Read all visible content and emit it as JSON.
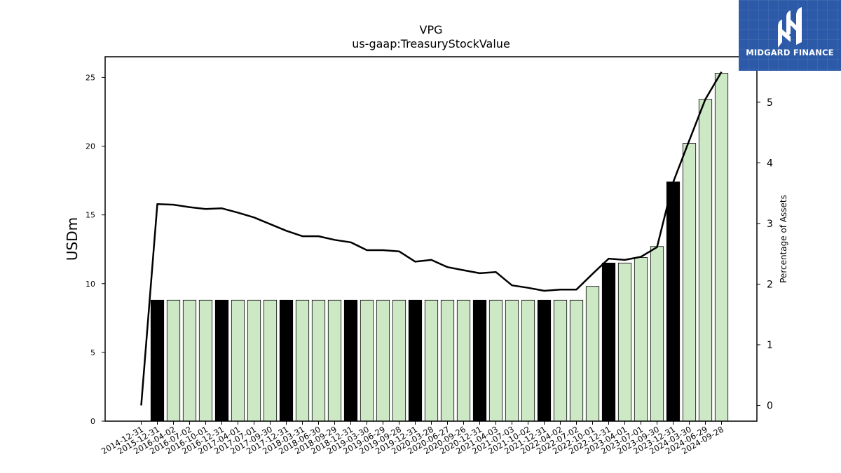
{
  "logo": {
    "text": "MIDGARD FINANCE"
  },
  "colors": {
    "bar_default": "#cce8c4",
    "bar_highlight": "#000000",
    "line": "#000000",
    "logo_bg": "#2c5aa8"
  },
  "chart_data": {
    "type": "bar",
    "title": "VPG",
    "subtitle": "us-gaap:TreasuryStockValue",
    "ylabel": "USDm",
    "y2label": "Percentage of Assets",
    "ylim": [
      0,
      26.5
    ],
    "y2lim": [
      -0.26,
      5.75
    ],
    "yticks": [
      0,
      5,
      10,
      15,
      20,
      25
    ],
    "y2ticks": [
      0,
      1,
      2,
      3,
      4,
      5
    ],
    "categories": [
      "2014-12-31",
      "2015-12-31",
      "2016-04-02",
      "2016-07-02",
      "2016-10-01",
      "2016-12-31",
      "2017-04-01",
      "2017-07-01",
      "2017-09-30",
      "2017-12-31",
      "2018-03-31",
      "2018-06-30",
      "2018-09-29",
      "2018-12-31",
      "2019-03-30",
      "2019-06-29",
      "2019-09-28",
      "2019-12-31",
      "2020-03-28",
      "2020-06-27",
      "2020-09-26",
      "2020-12-31",
      "2021-04-03",
      "2021-07-03",
      "2021-10-02",
      "2021-12-31",
      "2022-04-02",
      "2022-07-02",
      "2022-10-01",
      "2022-12-31",
      "2023-04-01",
      "2023-07-01",
      "2023-09-30",
      "2023-12-31",
      "2024-03-30",
      "2024-06-29",
      "2024-09-28"
    ],
    "series": [
      {
        "type": "bar",
        "values": [
          0,
          8.8,
          8.8,
          8.8,
          8.8,
          8.8,
          8.8,
          8.8,
          8.8,
          8.8,
          8.8,
          8.8,
          8.8,
          8.8,
          8.8,
          8.8,
          8.8,
          8.8,
          8.8,
          8.8,
          8.8,
          8.8,
          8.8,
          8.8,
          8.8,
          8.8,
          8.8,
          8.8,
          9.8,
          11.5,
          11.5,
          11.9,
          12.7,
          17.4,
          20.2,
          23.4,
          25.3
        ],
        "highlight": [
          false,
          true,
          false,
          false,
          false,
          true,
          false,
          false,
          false,
          true,
          false,
          false,
          false,
          true,
          false,
          false,
          false,
          true,
          false,
          false,
          false,
          true,
          false,
          false,
          false,
          true,
          false,
          false,
          false,
          true,
          false,
          false,
          false,
          true,
          false,
          false,
          false
        ]
      },
      {
        "type": "line",
        "axis": "right",
        "values": [
          0,
          3.32,
          3.31,
          3.27,
          3.24,
          3.25,
          3.18,
          3.1,
          2.99,
          2.88,
          2.79,
          2.79,
          2.73,
          2.69,
          2.56,
          2.56,
          2.54,
          2.37,
          2.4,
          2.28,
          2.23,
          2.18,
          2.2,
          1.98,
          1.94,
          1.89,
          1.91,
          1.91,
          2.17,
          2.42,
          2.4,
          2.45,
          2.61,
          3.68,
          4.37,
          5.05,
          5.5
        ]
      }
    ]
  }
}
